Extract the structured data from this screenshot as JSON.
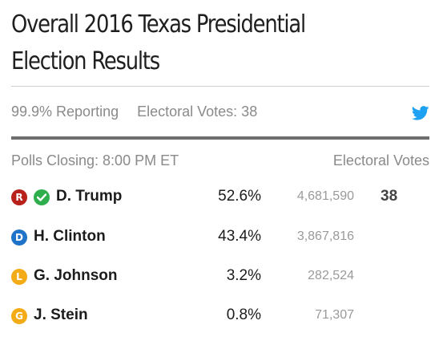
{
  "header": {
    "title_line1": "Overall 2016 Texas Presidential",
    "title_line2": "Election Results"
  },
  "meta": {
    "reporting": "99.9% Reporting",
    "electoral_votes": "Electoral Votes: 38",
    "share_icon": "twitter-bird-icon",
    "share_color": "#1da1f2"
  },
  "table": {
    "polls_closing": "Polls Closing: 8:00 PM ET",
    "electoral_votes_header": "Electoral Votes",
    "winner_icon": "check-circle-icon",
    "winner_color": "#2fae4e",
    "rows": [
      {
        "party": "R",
        "party_color": "#b8201c",
        "name": "D. Trump",
        "winner": true,
        "percent": "52.6%",
        "votes": "4,681,590",
        "electoral": "38"
      },
      {
        "party": "D",
        "party_color": "#1f73c8",
        "name": "H. Clinton",
        "winner": false,
        "percent": "43.4%",
        "votes": "3,867,816",
        "electoral": ""
      },
      {
        "party": "L",
        "party_color": "#f3ac18",
        "name": "G. Johnson",
        "winner": false,
        "percent": "3.2%",
        "votes": "282,524",
        "electoral": ""
      },
      {
        "party": "G",
        "party_color": "#f3ac18",
        "name": "J. Stein",
        "winner": false,
        "percent": "0.8%",
        "votes": "71,307",
        "electoral": ""
      }
    ]
  }
}
